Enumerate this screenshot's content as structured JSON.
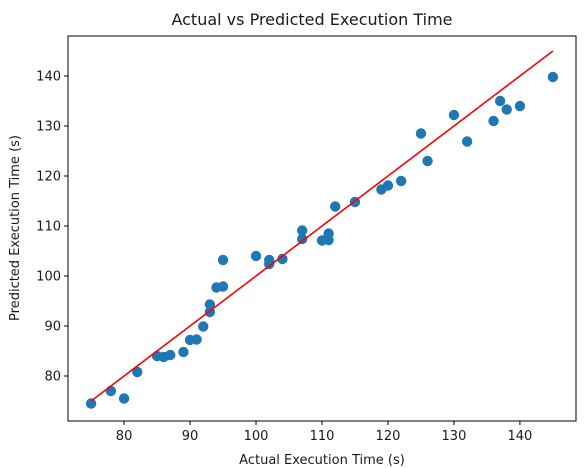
{
  "chart_data": {
    "type": "scatter",
    "title": "Actual vs Predicted Execution Time",
    "xlabel": "Actual Execution Time (s)",
    "ylabel": "Predicted Execution Time (s)",
    "xlim": [
      71.5,
      148.5
    ],
    "ylim": [
      71.0,
      148.0
    ],
    "xticks": [
      80,
      90,
      100,
      110,
      120,
      130,
      140
    ],
    "yticks": [
      80,
      90,
      100,
      110,
      120,
      130,
      140
    ],
    "grid": false,
    "point_color": "#1f77b4",
    "line_color": "#ff0000",
    "points": [
      {
        "x": 75,
        "y": 74.5
      },
      {
        "x": 78,
        "y": 77.0
      },
      {
        "x": 80,
        "y": 75.5
      },
      {
        "x": 82,
        "y": 80.8
      },
      {
        "x": 85,
        "y": 84.0
      },
      {
        "x": 86,
        "y": 83.8
      },
      {
        "x": 87,
        "y": 84.2
      },
      {
        "x": 89,
        "y": 84.8
      },
      {
        "x": 90,
        "y": 87.2
      },
      {
        "x": 91,
        "y": 87.3
      },
      {
        "x": 92,
        "y": 89.9
      },
      {
        "x": 93,
        "y": 92.8
      },
      {
        "x": 93,
        "y": 94.3
      },
      {
        "x": 94,
        "y": 97.7
      },
      {
        "x": 95,
        "y": 97.9
      },
      {
        "x": 95,
        "y": 103.2
      },
      {
        "x": 100,
        "y": 104.0
      },
      {
        "x": 102,
        "y": 102.4
      },
      {
        "x": 102,
        "y": 103.2
      },
      {
        "x": 104,
        "y": 103.4
      },
      {
        "x": 107,
        "y": 107.4
      },
      {
        "x": 107,
        "y": 109.1
      },
      {
        "x": 110,
        "y": 107.1
      },
      {
        "x": 111,
        "y": 107.2
      },
      {
        "x": 111,
        "y": 108.5
      },
      {
        "x": 112,
        "y": 113.9
      },
      {
        "x": 115,
        "y": 114.8
      },
      {
        "x": 119,
        "y": 117.3
      },
      {
        "x": 120,
        "y": 118.1
      },
      {
        "x": 122,
        "y": 119.0
      },
      {
        "x": 125,
        "y": 128.5
      },
      {
        "x": 126,
        "y": 123.0
      },
      {
        "x": 130,
        "y": 132.2
      },
      {
        "x": 132,
        "y": 126.9
      },
      {
        "x": 136,
        "y": 131.0
      },
      {
        "x": 137,
        "y": 135.0
      },
      {
        "x": 138,
        "y": 133.3
      },
      {
        "x": 140,
        "y": 134.0
      },
      {
        "x": 145,
        "y": 139.8
      }
    ],
    "reference_line": {
      "x": [
        75,
        145
      ],
      "y": [
        75,
        145
      ]
    }
  }
}
